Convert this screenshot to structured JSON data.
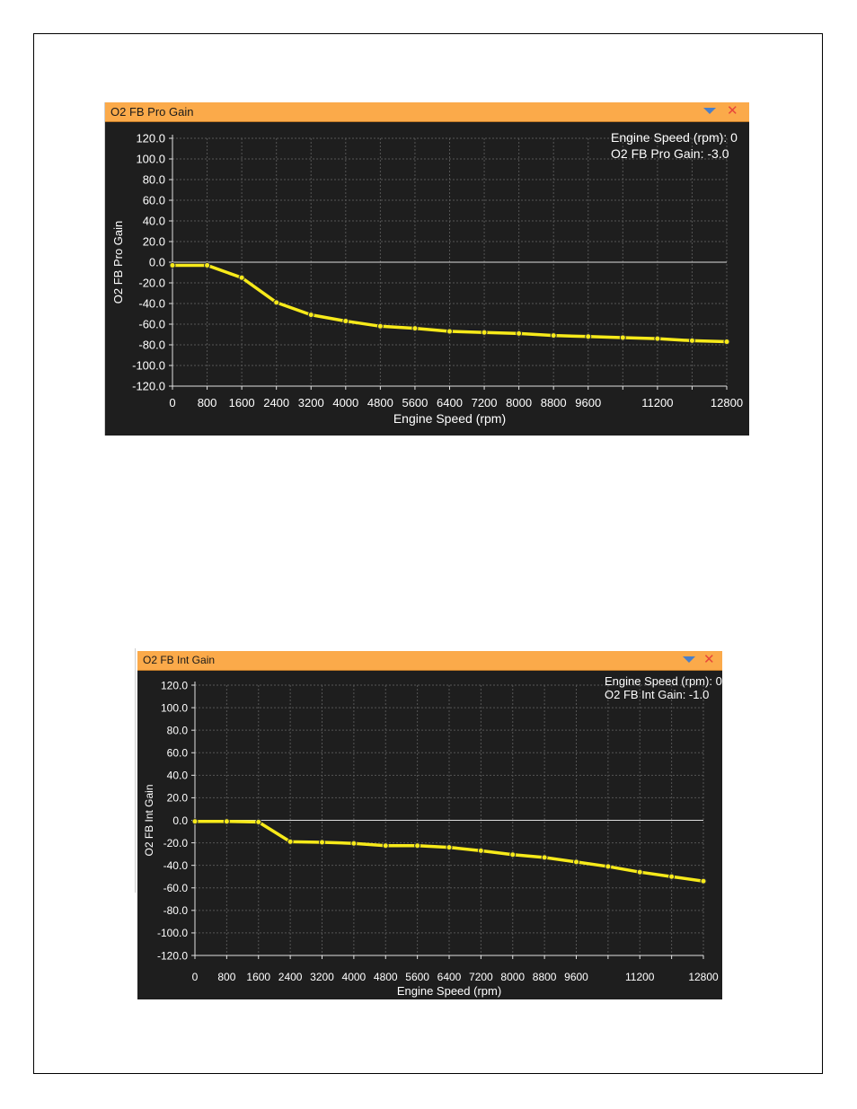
{
  "panels": [
    {
      "title": "O2 FB Pro Gain"
    },
    {
      "title": "O2 FB Int Gain"
    }
  ],
  "colors": {
    "panel_bg": "#1e1e1e",
    "titlebar": "#fbaa4a",
    "series": "#f7ea1a",
    "grid": "#555555",
    "text": "#ffffff"
  },
  "chart_data": [
    {
      "type": "line",
      "title": "",
      "xlabel": "Engine Speed (rpm)",
      "ylabel": "O2 FB Pro Gain",
      "xlim": [
        0,
        12800
      ],
      "ylim": [
        -120,
        120
      ],
      "x_ticks": [
        0,
        800,
        1600,
        2400,
        3200,
        4000,
        4800,
        5600,
        6400,
        7200,
        8000,
        8800,
        9600,
        11200,
        12800
      ],
      "x_tick_labels": [
        "0",
        "800",
        "1600",
        "2400",
        "3200",
        "4000",
        "4800",
        "5600",
        "6400",
        "7200",
        "8000",
        "8800",
        "9600",
        "11200",
        "12800"
      ],
      "x_grid": [
        0,
        800,
        1600,
        2400,
        3200,
        4000,
        4800,
        5600,
        6400,
        7200,
        8000,
        8800,
        9600,
        10400,
        11200,
        12000,
        12800
      ],
      "y_ticks": [
        120,
        100,
        80,
        60,
        40,
        20,
        0,
        -20,
        -40,
        -60,
        -80,
        -100,
        -120
      ],
      "y_tick_labels": [
        "120.0",
        "100.0",
        "80.0",
        "60.0",
        "40.0",
        "20.0",
        "0.0",
        "-20.0",
        "-40.0",
        "-60.0",
        "-80.0",
        "-100.0",
        "-120.0"
      ],
      "grid": true,
      "readout": [
        "Engine Speed (rpm): 0",
        "O2 FB Pro Gain: -3.0"
      ],
      "series": [
        {
          "x": [
            0,
            800,
            1600,
            2400,
            3200,
            4000,
            4800,
            5600,
            6400,
            7200,
            8000,
            8800,
            9600,
            10400,
            11200,
            12000,
            12800
          ],
          "values": [
            -3,
            -3,
            -15,
            -39,
            -51,
            -57,
            -62,
            -64,
            -67,
            -68,
            -69,
            -71,
            -72,
            -73,
            -74,
            -76,
            -77
          ]
        }
      ]
    },
    {
      "type": "line",
      "title": "",
      "xlabel": "Engine Speed (rpm)",
      "ylabel": "O2 FB Int Gain",
      "xlim": [
        0,
        12800
      ],
      "ylim": [
        -120,
        120
      ],
      "x_ticks": [
        0,
        800,
        1600,
        2400,
        3200,
        4000,
        4800,
        5600,
        6400,
        7200,
        8000,
        8800,
        9600,
        11200,
        12800
      ],
      "x_tick_labels": [
        "0",
        "800",
        "1600",
        "2400",
        "3200",
        "4000",
        "4800",
        "5600",
        "6400",
        "7200",
        "8000",
        "8800",
        "9600",
        "11200",
        "12800"
      ],
      "x_grid": [
        0,
        800,
        1600,
        2400,
        3200,
        4000,
        4800,
        5600,
        6400,
        7200,
        8000,
        8800,
        9600,
        10400,
        11200,
        12000,
        12800
      ],
      "y_ticks": [
        120,
        100,
        80,
        60,
        40,
        20,
        0,
        -20,
        -40,
        -60,
        -80,
        -100,
        -120
      ],
      "y_tick_labels": [
        "120.0",
        "100.0",
        "80.0",
        "60.0",
        "40.0",
        "20.0",
        "0.0",
        "-20.0",
        "-40.0",
        "-60.0",
        "-80.0",
        "-100.0",
        "-120.0"
      ],
      "grid": true,
      "readout": [
        "Engine Speed (rpm): 0",
        "O2 FB Int Gain: -1.0"
      ],
      "series": [
        {
          "x": [
            0,
            800,
            1600,
            2400,
            3200,
            4000,
            4800,
            5600,
            6400,
            7200,
            8000,
            8800,
            9600,
            10400,
            11200,
            12000,
            12800
          ],
          "values": [
            -1,
            -1,
            -1.5,
            -19,
            -19.5,
            -20.5,
            -22.5,
            -22.5,
            -24,
            -27,
            -30.5,
            -33,
            -37,
            -41,
            -46,
            -50,
            -54
          ]
        }
      ]
    }
  ]
}
